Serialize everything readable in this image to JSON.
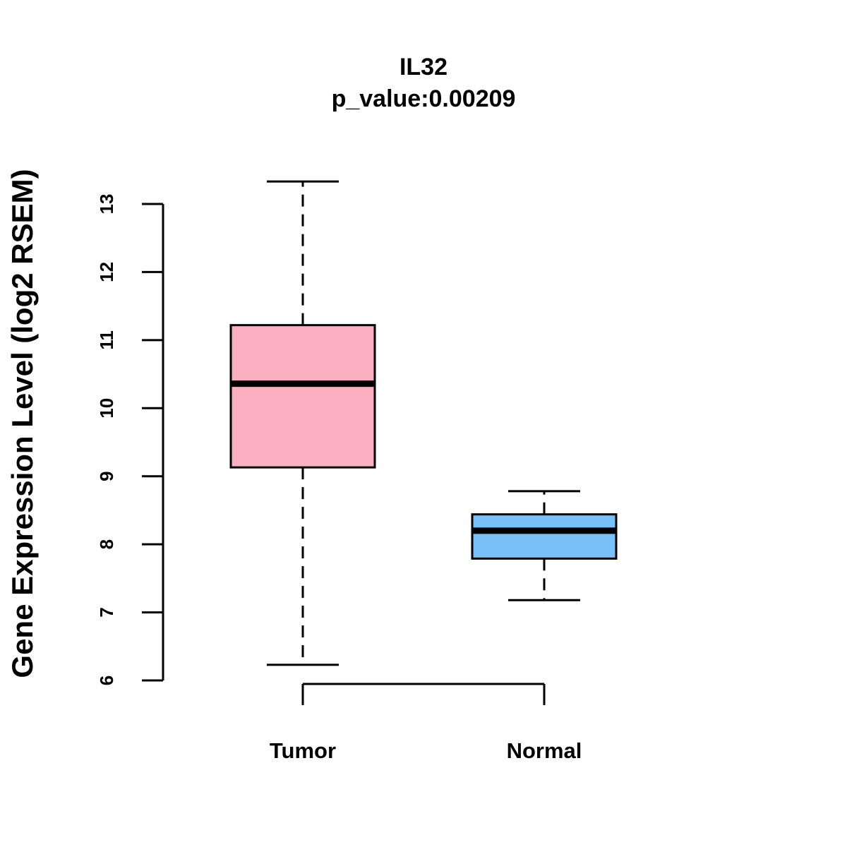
{
  "chart_data": {
    "type": "boxplot",
    "title": "IL32",
    "subtitle": "p_value:0.00209",
    "xlabel": "",
    "ylabel": "Gene Expression Level (log2 RSEM)",
    "ylim": [
      6,
      13
    ],
    "yticks": [
      6,
      7,
      8,
      9,
      10,
      11,
      12,
      13
    ],
    "categories": [
      "Tumor",
      "Normal"
    ],
    "boxes": [
      {
        "name": "Tumor",
        "min": 6.23,
        "q1": 9.13,
        "median": 10.36,
        "q3": 11.22,
        "max": 13.33,
        "color": "#fbb0c2"
      },
      {
        "name": "Normal",
        "min": 7.18,
        "q1": 7.79,
        "median": 8.2,
        "q3": 8.44,
        "max": 8.78,
        "color": "#77c0f8"
      }
    ],
    "grid": false,
    "legend": "none"
  }
}
